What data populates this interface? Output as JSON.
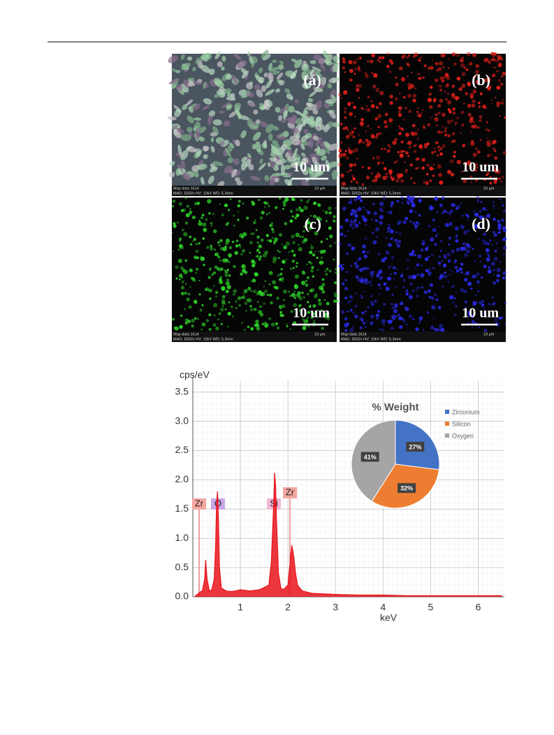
{
  "panels": [
    {
      "label": "(a)",
      "scale": "10 um",
      "map": "Map data 1614",
      "info": "MAG: 5002x  HV: 10kV  WD: 5.3mm",
      "bar": "10 µm"
    },
    {
      "label": "(b)",
      "scale": "10 um",
      "map": "Map data 1614",
      "info": "MAG: 5002x  HV: 10kV  WD: 5.3mm",
      "bar": "10 µm"
    },
    {
      "label": "(c)",
      "scale": "10 um",
      "map": "Map data 1614",
      "info": "MAG: 5002x  HV: 10kV  WD: 5.3mm",
      "bar": "10 µm"
    },
    {
      "label": "(d)",
      "scale": "10 um",
      "map": "Map data 1614",
      "info": "MAG: 5002x  HV: 10kV  WD: 5.3mm",
      "bar": "10 µm"
    }
  ],
  "chart_data": [
    {
      "type": "line",
      "y_label": "cps/eV",
      "x_label": "keV",
      "color": "#e8141b",
      "annotations": [
        "Zr",
        "O",
        "Si",
        "Zr"
      ],
      "x": [
        0.05,
        0.1,
        0.15,
        0.2,
        0.25,
        0.27,
        0.3,
        0.35,
        0.4,
        0.45,
        0.48,
        0.5,
        0.52,
        0.54,
        0.56,
        0.6,
        0.7,
        0.8,
        0.9,
        1.0,
        1.2,
        1.4,
        1.6,
        1.65,
        1.7,
        1.72,
        1.74,
        1.76,
        1.8,
        1.85,
        1.9,
        2.0,
        2.04,
        2.08,
        2.1,
        2.12,
        2.16,
        2.2,
        2.3,
        2.5,
        3.0,
        3.5,
        4.0,
        4.5,
        5.0,
        5.5,
        6.0,
        6.5
      ],
      "values": [
        0.02,
        0.04,
        0.08,
        0.1,
        0.3,
        0.63,
        0.3,
        0.1,
        0.12,
        0.3,
        0.9,
        1.6,
        1.8,
        1.3,
        0.5,
        0.15,
        0.1,
        0.09,
        0.1,
        0.12,
        0.1,
        0.12,
        0.2,
        0.6,
        1.6,
        2.12,
        1.9,
        1.3,
        0.4,
        0.15,
        0.12,
        0.2,
        0.55,
        0.88,
        0.8,
        0.7,
        0.4,
        0.2,
        0.1,
        0.06,
        0.04,
        0.03,
        0.03,
        0.02,
        0.02,
        0.02,
        0.02,
        0.02
      ],
      "xlim": [
        0,
        6.55
      ],
      "ylim": [
        0,
        3.7
      ],
      "xticks": [
        1,
        2,
        3,
        4,
        5,
        6
      ],
      "yticks": [
        {
          "value": 0,
          "label": "0.0"
        },
        0.5,
        {
          "value": 1,
          "label": "1.0"
        },
        1.5,
        {
          "value": 2,
          "label": "2.0"
        },
        2.5,
        {
          "value": 3,
          "label": "3.0"
        },
        3.5
      ],
      "grid": true
    },
    {
      "type": "pie",
      "title": "% Weight",
      "categories": [
        "Zirconium",
        "Silicon",
        "Oxygen"
      ],
      "values": [
        27,
        32,
        41
      ],
      "value_labels": [
        "27%",
        "32%",
        "41%"
      ],
      "colors": [
        "#4472c4",
        "#ed7d31",
        "#a5a5a5"
      ]
    }
  ]
}
